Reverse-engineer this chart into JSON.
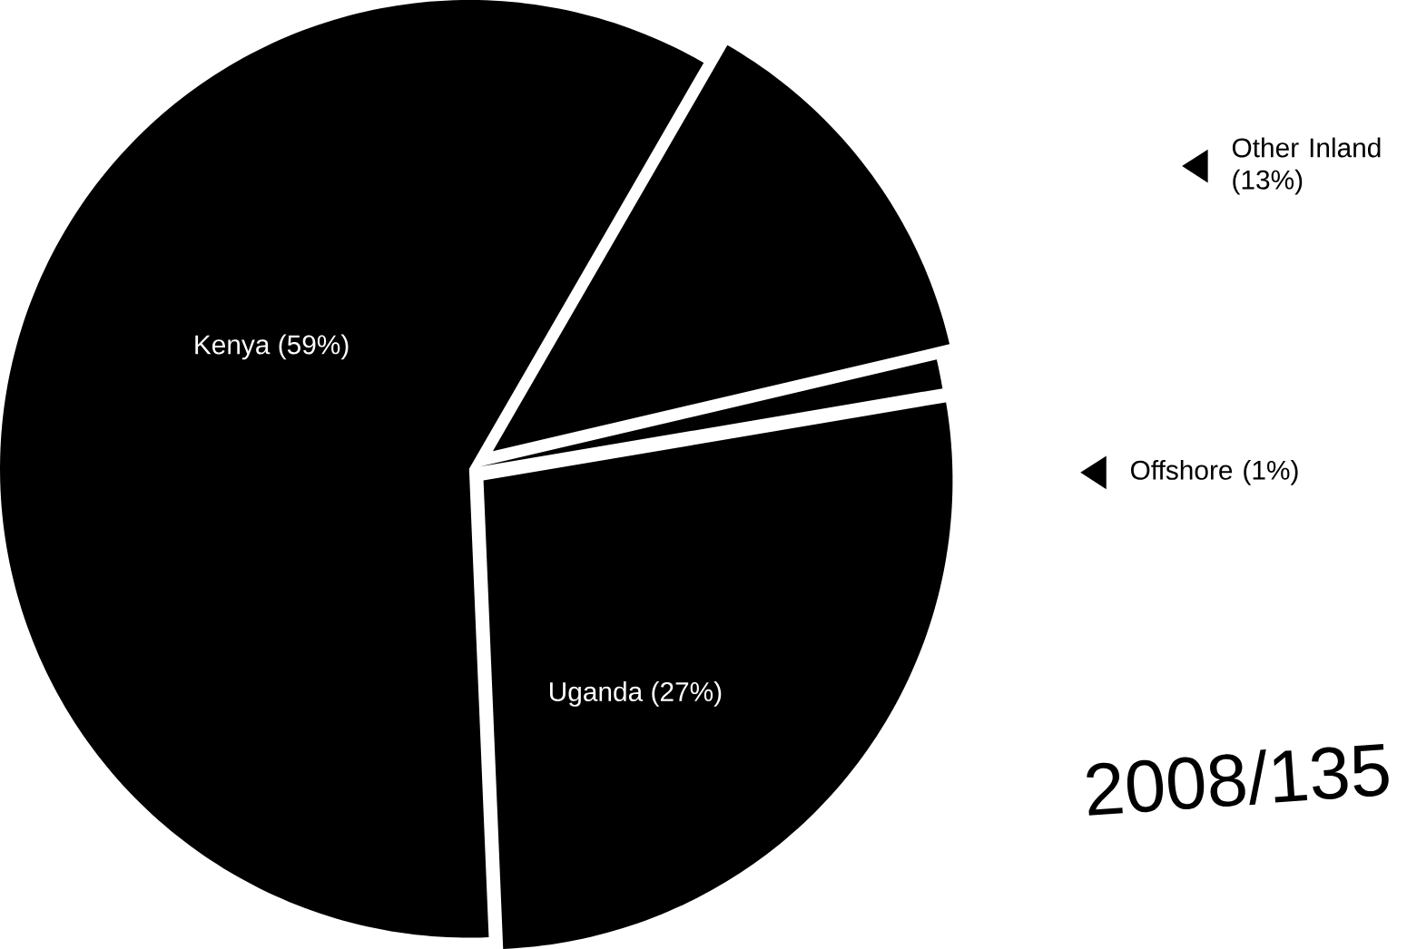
{
  "chart_data": {
    "type": "pie",
    "categories": [
      "Kenya",
      "Uganda",
      "Offshore",
      "Other Inland"
    ],
    "values": [
      59,
      27,
      1,
      13
    ],
    "colors": [
      "#000000",
      "#000000",
      "#000000",
      "#000000"
    ],
    "value_labels": [
      "(59%)",
      "(27%)",
      "(1%)",
      "(13%)"
    ],
    "legend": "right",
    "annotations": [
      "2008/135"
    ]
  }
}
